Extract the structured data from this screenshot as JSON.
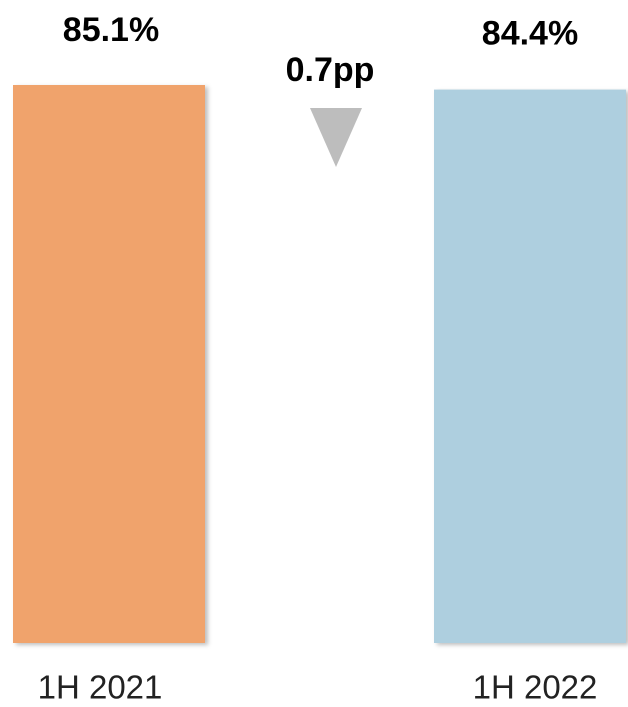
{
  "chart_data": {
    "type": "bar",
    "categories": [
      "1H 2021",
      "1H 2022"
    ],
    "values": [
      85.1,
      84.4
    ],
    "value_labels": [
      "85.1%",
      "84.4%"
    ],
    "colors": [
      "#f0a36c",
      "#aecfdf"
    ],
    "annotation": "0.7pp",
    "ylim": [
      0,
      85.1
    ]
  }
}
